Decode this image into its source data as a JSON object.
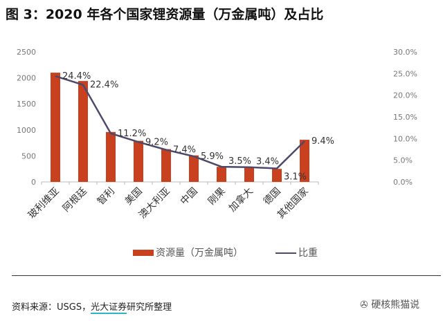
{
  "title": "图 3：2020 年各个国家锂资源量（万金属吨）及占比",
  "chart_data": {
    "type": "bar+line",
    "categories": [
      "玻利维亚",
      "阿根廷",
      "智利",
      "美国",
      "澳大利亚",
      "中国",
      "刚果",
      "加拿大",
      "德国",
      "其他国家"
    ],
    "series": [
      {
        "name": "资源量（万金属吨）",
        "type": "bar",
        "axis": "left",
        "color": "#c9401f",
        "values": [
          2100,
          1940,
          960,
          790,
          630,
          510,
          290,
          290,
          250,
          810
        ]
      },
      {
        "name": "比重",
        "type": "line",
        "axis": "right",
        "color": "#4b4a6b",
        "values": [
          24.4,
          22.4,
          11.2,
          9.2,
          7.4,
          5.9,
          3.5,
          3.4,
          3.1,
          9.4
        ],
        "labels": [
          "24.4%",
          "22.4%",
          "11.2%",
          "9.2%",
          "7.4%",
          "5.9%",
          "3.5%",
          "3.4%",
          "3.1%",
          "9.4%"
        ]
      }
    ],
    "y_left": {
      "range": [
        0,
        2500
      ],
      "ticks": [
        "0",
        "500",
        "1000",
        "1500",
        "2000",
        "2500"
      ]
    },
    "y_right": {
      "range": [
        0,
        30
      ],
      "ticks": [
        "0.0%",
        "5.0%",
        "10.0%",
        "15.0%",
        "20.0%",
        "25.0%",
        "30.0%"
      ]
    },
    "grid": false,
    "legend": "bottom"
  },
  "footer": {
    "source_prefix": "资料来源：USGS，",
    "source_org": "光大证券",
    "source_suffix": "研究所整理",
    "watermark": "硬核熊猫说"
  }
}
